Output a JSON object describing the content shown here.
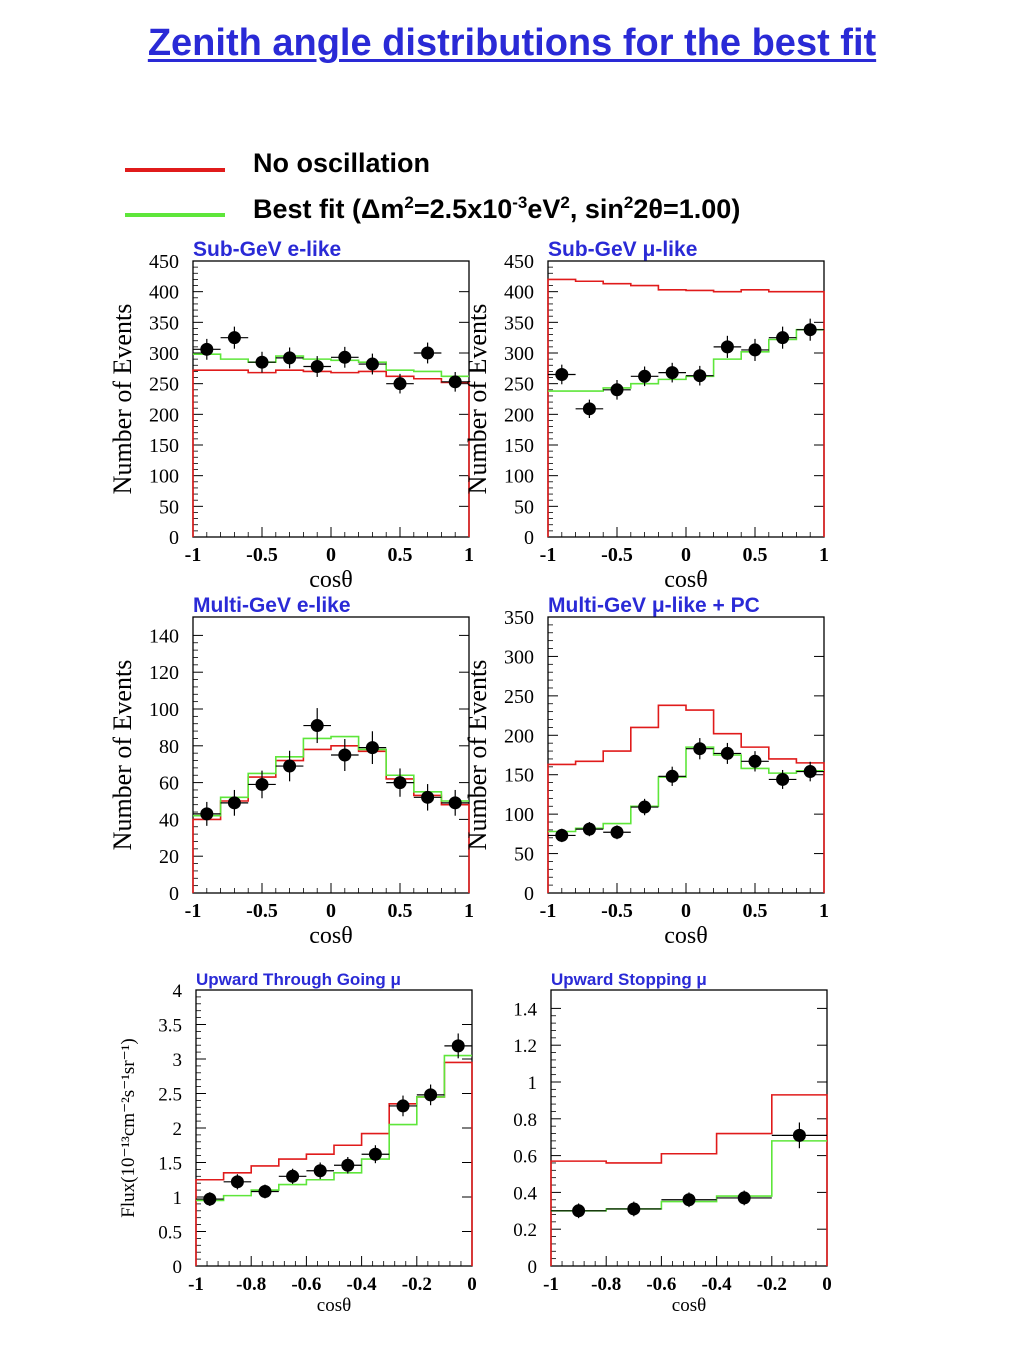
{
  "title": "Zenith angle distributions for the best fit",
  "legend": {
    "items": [
      {
        "color": "#e01b1b",
        "label": "No oscillation"
      },
      {
        "color": "#5ee63a",
        "label_parts": {
          "pre": "Best fit (",
          "delta": "Δ",
          "m": "m",
          "sup1": "2",
          "eq": "=2.5x10",
          "sup2": "-3",
          "ev": "eV",
          "sup3": "2",
          "mid": ", sin",
          "sup4": "2",
          "two": "2",
          "theta": "θ",
          "post": "=1.00)"
        }
      }
    ]
  },
  "colors": {
    "no_osc": "#e01b1b",
    "best_fit": "#5ee63a",
    "data": "#000000",
    "panel_title": "#2a2ad6"
  },
  "chart_data": [
    {
      "type": "histogram",
      "title": "Sub-GeV e-like",
      "xlabel": "cosθ",
      "ylabel": "Number of Events",
      "xlim": [
        -1,
        1
      ],
      "ylim": [
        0,
        450
      ],
      "xticks": [
        -1,
        -0.5,
        0,
        0.5,
        1
      ],
      "xtick_labels": [
        "-1",
        "-0.5",
        "0",
        "0.5",
        "1"
      ],
      "yticks": [
        0,
        50,
        100,
        150,
        200,
        250,
        300,
        350,
        400,
        450
      ],
      "bin_edges": [
        -1,
        -0.8,
        -0.6,
        -0.4,
        -0.2,
        0,
        0.2,
        0.4,
        0.6,
        0.8,
        1
      ],
      "series": [
        {
          "name": "No oscillation",
          "values": [
            272,
            272,
            268,
            272,
            270,
            268,
            270,
            262,
            258,
            252
          ]
        },
        {
          "name": "Best fit",
          "values": [
            298,
            290,
            285,
            295,
            290,
            288,
            285,
            272,
            270,
            262
          ]
        },
        {
          "name": "Data",
          "x": [
            -0.9,
            -0.7,
            -0.5,
            -0.3,
            -0.1,
            0.1,
            0.3,
            0.5,
            0.7,
            0.9
          ],
          "values": [
            306,
            325,
            285,
            292,
            278,
            293,
            282,
            250,
            300,
            253
          ],
          "errors": [
            17,
            18,
            17,
            17,
            17,
            17,
            17,
            16,
            17,
            16
          ]
        }
      ]
    },
    {
      "type": "histogram",
      "title": "Sub-GeV μ-like",
      "xlabel": "cosθ",
      "ylabel": "Number of Events",
      "xlim": [
        -1,
        1
      ],
      "ylim": [
        0,
        450
      ],
      "xticks": [
        -1,
        -0.5,
        0,
        0.5,
        1
      ],
      "xtick_labels": [
        "-1",
        "-0.5",
        "0",
        "0.5",
        "1"
      ],
      "yticks": [
        0,
        50,
        100,
        150,
        200,
        250,
        300,
        350,
        400,
        450
      ],
      "bin_edges": [
        -1,
        -0.8,
        -0.6,
        -0.4,
        -0.2,
        0,
        0.2,
        0.4,
        0.6,
        0.8,
        1
      ],
      "series": [
        {
          "name": "No oscillation",
          "values": [
            420,
            417,
            413,
            410,
            403,
            402,
            400,
            403,
            400,
            400
          ]
        },
        {
          "name": "Best fit",
          "values": [
            238,
            238,
            243,
            250,
            257,
            262,
            290,
            302,
            322,
            338
          ]
        },
        {
          "name": "Data",
          "x": [
            -0.9,
            -0.7,
            -0.5,
            -0.3,
            -0.1,
            0.1,
            0.3,
            0.5,
            0.7,
            0.9
          ],
          "values": [
            265,
            209,
            240,
            262,
            268,
            263,
            310,
            305,
            325,
            338
          ],
          "errors": [
            16,
            15,
            16,
            16,
            16,
            16,
            18,
            18,
            18,
            18
          ]
        }
      ]
    },
    {
      "type": "histogram",
      "title": "Multi-GeV e-like",
      "xlabel": "cosθ",
      "ylabel": "Number of Events",
      "xlim": [
        -1,
        1
      ],
      "ylim": [
        0,
        150
      ],
      "xticks": [
        -1,
        -0.5,
        0,
        0.5,
        1
      ],
      "xtick_labels": [
        "-1",
        "-0.5",
        "0",
        "0.5",
        "1"
      ],
      "yticks": [
        0,
        20,
        40,
        60,
        80,
        100,
        120,
        140
      ],
      "bin_edges": [
        -1,
        -0.8,
        -0.6,
        -0.4,
        -0.2,
        0,
        0.2,
        0.4,
        0.6,
        0.8,
        1
      ],
      "series": [
        {
          "name": "No oscillation",
          "values": [
            40,
            50,
            63,
            72,
            78,
            80,
            77,
            62,
            53,
            48
          ]
        },
        {
          "name": "Best fit",
          "values": [
            42,
            52,
            65,
            74,
            84,
            85,
            78,
            64,
            55,
            50
          ]
        },
        {
          "name": "Data",
          "x": [
            -0.9,
            -0.7,
            -0.5,
            -0.3,
            -0.1,
            0.1,
            0.3,
            0.5,
            0.7,
            0.9
          ],
          "values": [
            43,
            49,
            59,
            69,
            91,
            75,
            79,
            60,
            52,
            49
          ],
          "errors": [
            6.5,
            7,
            7.5,
            8.3,
            9.5,
            8.7,
            8.9,
            7.7,
            7.2,
            7
          ]
        }
      ]
    },
    {
      "type": "histogram",
      "title": "Multi-GeV μ-like + PC",
      "xlabel": "cosθ",
      "ylabel": "Number of Events",
      "xlim": [
        -1,
        1
      ],
      "ylim": [
        0,
        350
      ],
      "xticks": [
        -1,
        -0.5,
        0,
        0.5,
        1
      ],
      "xtick_labels": [
        "-1",
        "-0.5",
        "0",
        "0.5",
        "1"
      ],
      "yticks": [
        0,
        50,
        100,
        150,
        200,
        250,
        300,
        350
      ],
      "bin_edges": [
        -1,
        -0.8,
        -0.6,
        -0.4,
        -0.2,
        0,
        0.2,
        0.4,
        0.6,
        0.8,
        1
      ],
      "series": [
        {
          "name": "No oscillation",
          "values": [
            163,
            167,
            180,
            210,
            238,
            232,
            202,
            185,
            170,
            165
          ]
        },
        {
          "name": "Best fit",
          "values": [
            78,
            82,
            88,
            110,
            147,
            185,
            175,
            158,
            152,
            155
          ]
        },
        {
          "name": "Data",
          "x": [
            -0.9,
            -0.7,
            -0.5,
            -0.3,
            -0.1,
            0.1,
            0.3,
            0.5,
            0.7,
            0.9
          ],
          "values": [
            73,
            81,
            77,
            109,
            148,
            183,
            177,
            167,
            144,
            154
          ],
          "errors": [
            8.5,
            9,
            8.8,
            10.4,
            12.2,
            13.5,
            13.3,
            12.9,
            12,
            12.4
          ]
        }
      ]
    },
    {
      "type": "histogram",
      "title": "Upward Through Going μ",
      "xlabel": "cosθ",
      "ylabel": "Flux(10⁻¹³cm⁻²s⁻¹sr⁻¹)",
      "xlim": [
        -1,
        0
      ],
      "ylim": [
        0,
        4
      ],
      "xticks": [
        -1,
        -0.8,
        -0.6,
        -0.4,
        -0.2,
        0
      ],
      "xtick_labels": [
        "-1",
        "-0.8",
        "-0.6",
        "-0.4",
        "-0.2",
        "0"
      ],
      "yticks": [
        0,
        0.5,
        1,
        1.5,
        2,
        2.5,
        3,
        3.5,
        4
      ],
      "ytick_labels": [
        "0",
        "0.5",
        "1",
        "1.5",
        "2",
        "2.5",
        "3",
        "3.5",
        "4"
      ],
      "bin_edges": [
        -1,
        -0.9,
        -0.8,
        -0.7,
        -0.6,
        -0.5,
        -0.4,
        -0.3,
        -0.2,
        -0.1,
        0
      ],
      "series": [
        {
          "name": "No oscillation",
          "values": [
            1.25,
            1.35,
            1.45,
            1.55,
            1.62,
            1.75,
            1.92,
            2.35,
            2.45,
            2.95
          ]
        },
        {
          "name": "Best fit",
          "values": [
            0.95,
            1.02,
            1.1,
            1.18,
            1.25,
            1.35,
            1.55,
            2.05,
            2.45,
            3.05
          ]
        },
        {
          "name": "Data",
          "x": [
            -0.95,
            -0.85,
            -0.75,
            -0.65,
            -0.55,
            -0.45,
            -0.35,
            -0.25,
            -0.15,
            -0.05
          ],
          "values": [
            0.97,
            1.22,
            1.08,
            1.3,
            1.38,
            1.46,
            1.62,
            2.32,
            2.48,
            3.19
          ],
          "errors": [
            0.1,
            0.11,
            0.1,
            0.11,
            0.12,
            0.12,
            0.13,
            0.15,
            0.15,
            0.18
          ]
        }
      ]
    },
    {
      "type": "histogram",
      "title": "Upward Stopping μ",
      "xlabel": "cosθ",
      "ylabel": "",
      "xlim": [
        -1,
        0
      ],
      "ylim": [
        0,
        1.5
      ],
      "xticks": [
        -1,
        -0.8,
        -0.6,
        -0.4,
        -0.2,
        0
      ],
      "xtick_labels": [
        "-1",
        "-0.8",
        "-0.6",
        "-0.4",
        "-0.2",
        "0"
      ],
      "yticks": [
        0,
        0.2,
        0.4,
        0.6,
        0.8,
        1,
        1.2,
        1.4
      ],
      "ytick_labels": [
        "0",
        "0.2",
        "0.4",
        "0.6",
        "0.8",
        "1",
        "1.2",
        "1.4"
      ],
      "bin_edges": [
        -1,
        -0.8,
        -0.6,
        -0.4,
        -0.2,
        0
      ],
      "series": [
        {
          "name": "No oscillation",
          "values": [
            0.57,
            0.56,
            0.61,
            0.72,
            0.93
          ]
        },
        {
          "name": "Best fit",
          "values": [
            0.3,
            0.31,
            0.35,
            0.38,
            0.68
          ]
        },
        {
          "name": "Data",
          "x": [
            -0.9,
            -0.7,
            -0.5,
            -0.3,
            -0.1
          ],
          "values": [
            0.3,
            0.31,
            0.36,
            0.37,
            0.71
          ],
          "errors": [
            0.04,
            0.04,
            0.04,
            0.04,
            0.07
          ]
        }
      ]
    }
  ]
}
